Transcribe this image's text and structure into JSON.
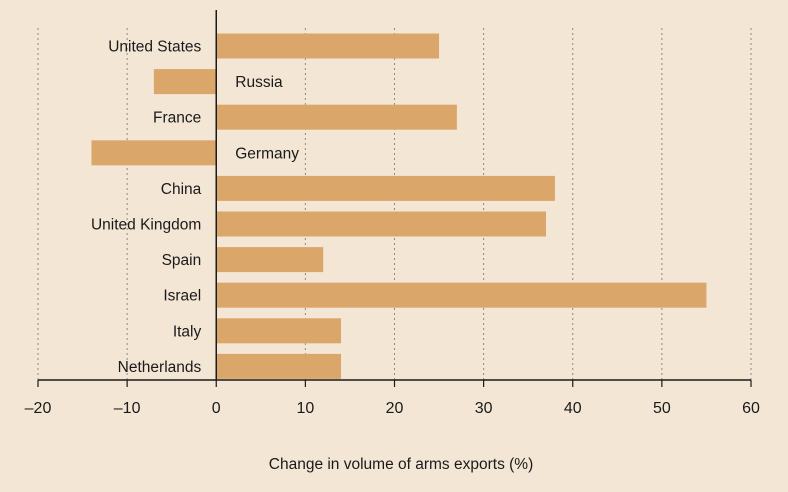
{
  "chart_data": {
    "type": "bar",
    "orientation": "horizontal",
    "categories": [
      "United States",
      "Russia",
      "France",
      "Germany",
      "China",
      "United Kingdom",
      "Spain",
      "Israel",
      "Italy",
      "Netherlands"
    ],
    "values": [
      25,
      -7,
      27,
      -14,
      38,
      37,
      12,
      55,
      14,
      14
    ],
    "xlabel": "Change in volume of arms exports (%)",
    "xlim": [
      -20,
      60
    ],
    "xticks": [
      -20,
      -10,
      0,
      10,
      20,
      30,
      40,
      50,
      60
    ],
    "xtick_labels": [
      "–20",
      "–10",
      "0",
      "10",
      "20",
      "30",
      "40",
      "50",
      "60"
    ],
    "grid": "vertical dotted",
    "bar_color": "#dba66a",
    "background_color": "#f3e6d5"
  }
}
